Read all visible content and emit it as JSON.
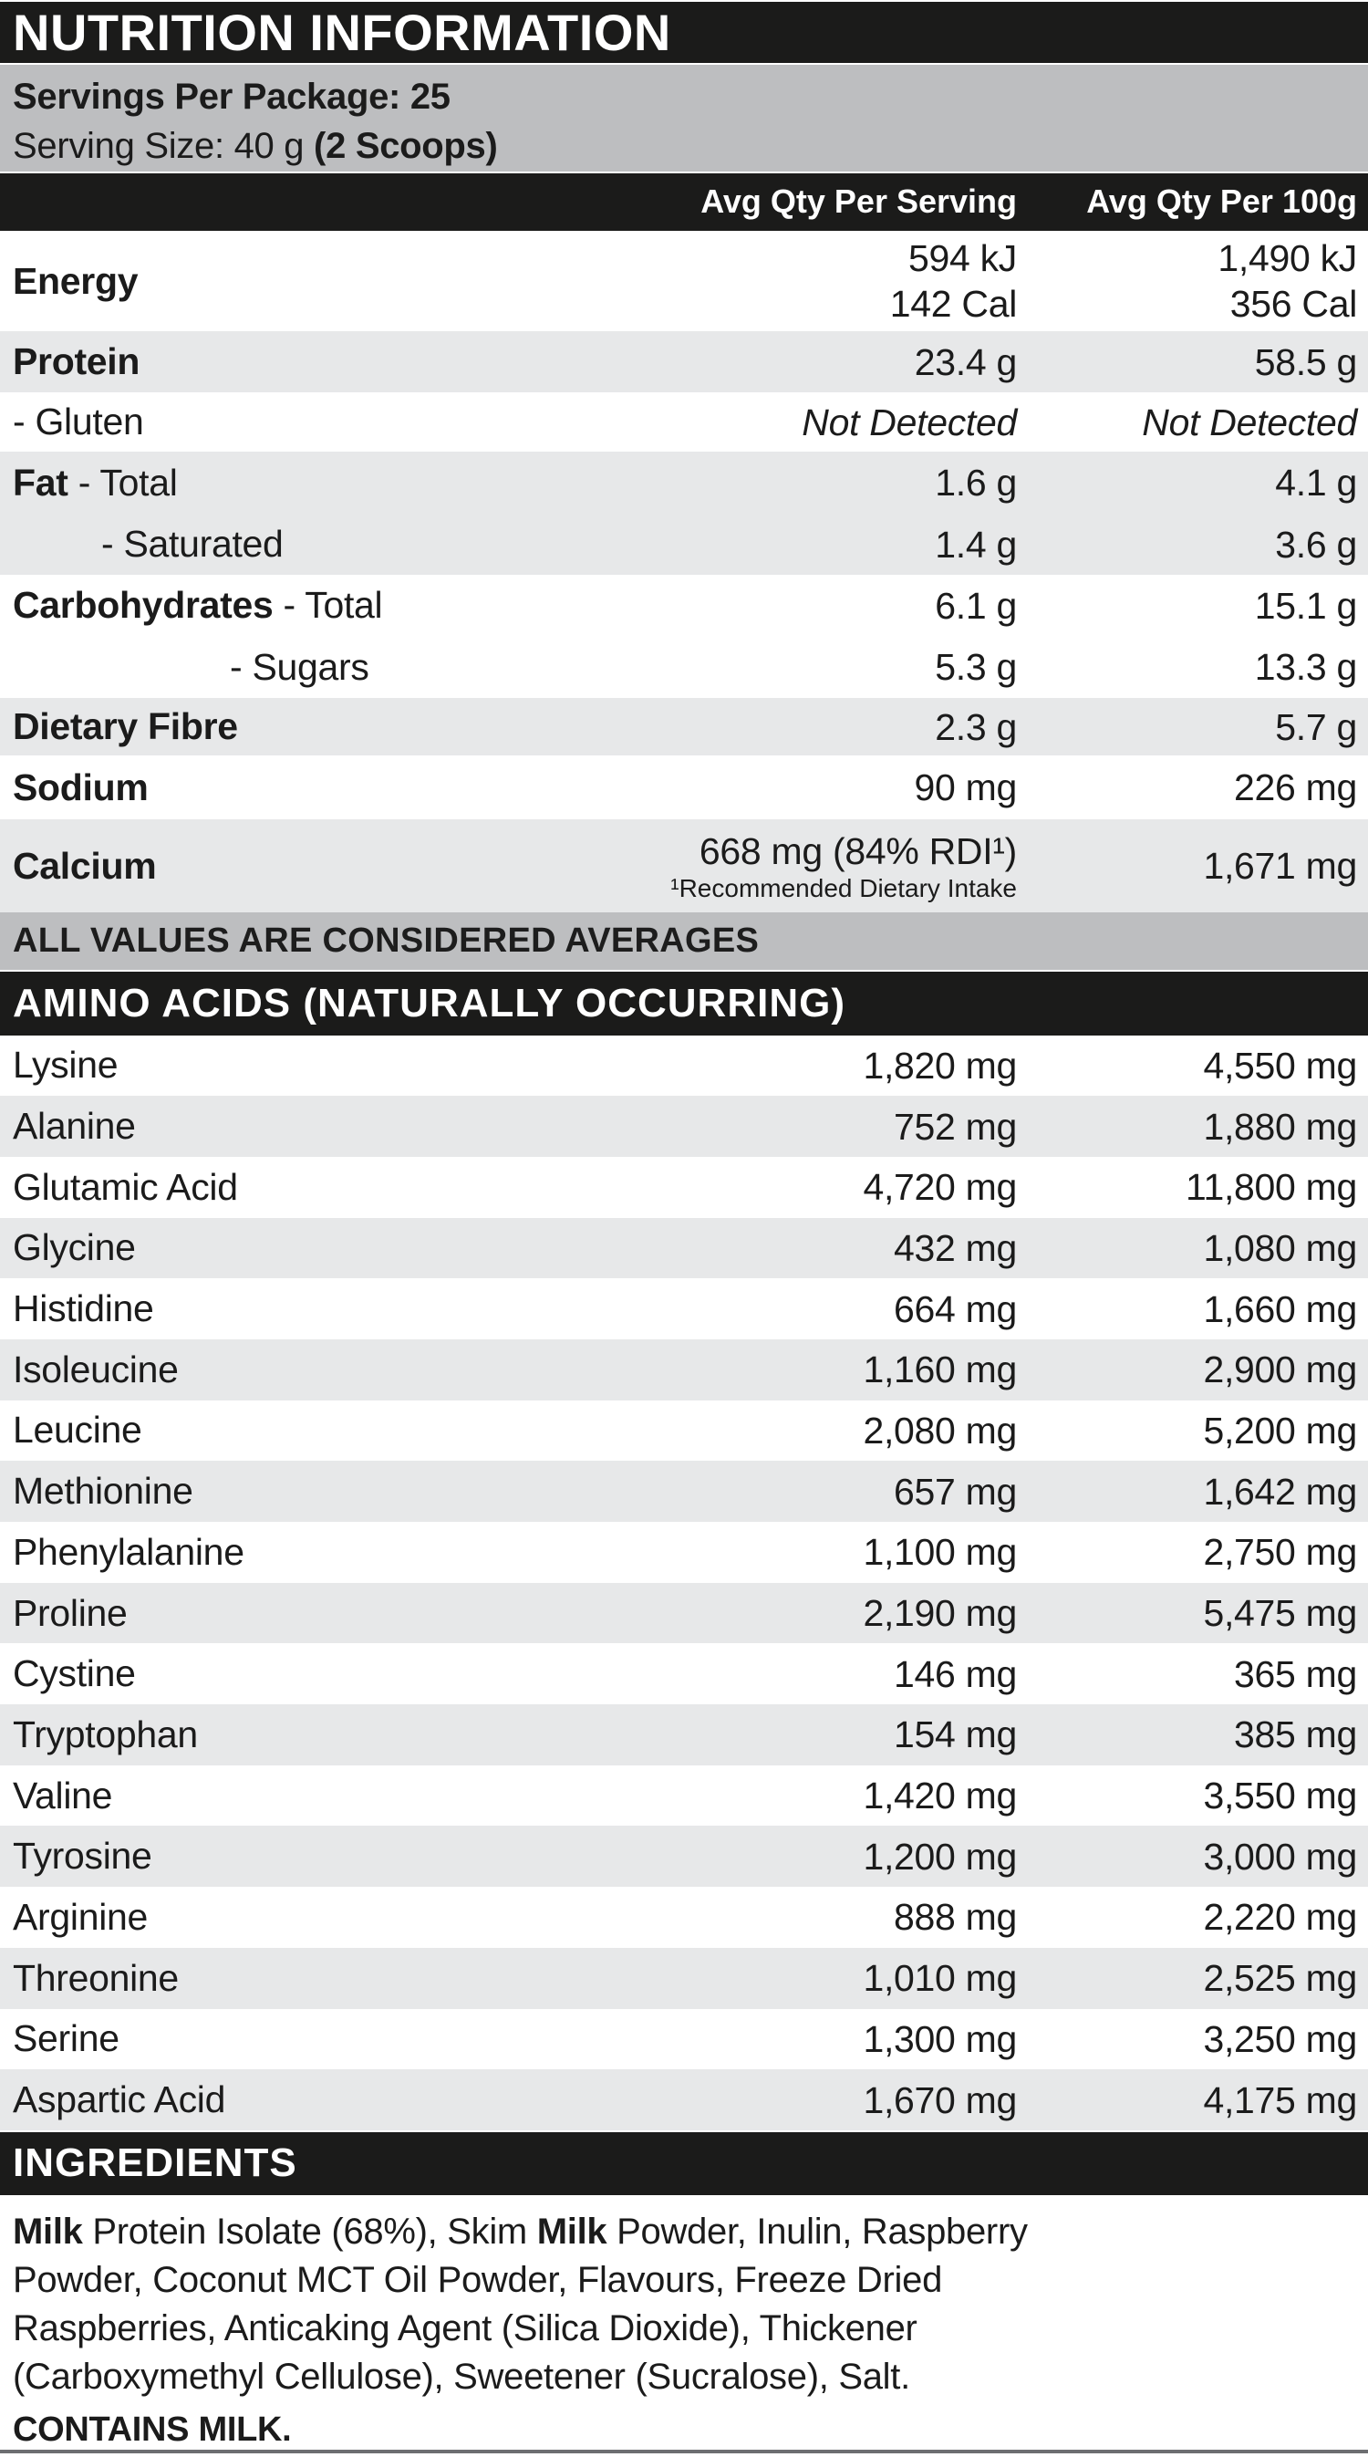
{
  "colors": {
    "band_black": "#1b1b1a",
    "silver": "#bdbec0",
    "row_gray": "#e7e8e9",
    "text": "#1b1b1b",
    "bottom_rule": "#6d6e71"
  },
  "header": {
    "title": "NUTRITION INFORMATION"
  },
  "serving_info": {
    "servings_per_package": [
      {
        "t": "Servings Per Package: 25",
        "b": true
      }
    ],
    "serving_size": [
      {
        "t": "Serving Size: 40 g ",
        "b": false
      },
      {
        "t": "(2 Scoops)",
        "b": true
      }
    ]
  },
  "column_headers": {
    "per_serving": "Avg Qty Per Serving",
    "per_100g": "Avg Qty Per 100g"
  },
  "nutrition_table": {
    "rows": [
      {
        "label": [
          {
            "t": "Energy",
            "b": true
          }
        ],
        "indent": 0,
        "shade": "gray0",
        "h": 110,
        "serving": [
          "594 kJ",
          "142 Cal"
        ],
        "per100": [
          "1,490 kJ",
          "356 Cal"
        ],
        "italic": false
      },
      {
        "label": [
          {
            "t": "Protein",
            "b": true
          }
        ],
        "indent": 0,
        "shade": "gray1",
        "h": 67,
        "serving": [
          "23.4 g"
        ],
        "per100": [
          "58.5 g"
        ],
        "italic": false
      },
      {
        "label": [
          {
            "t": "- Gluten",
            "b": false
          }
        ],
        "indent": 0,
        "shade": "gray0",
        "h": 65,
        "serving": [
          "Not Detected"
        ],
        "per100": [
          "Not Detected"
        ],
        "italic": true
      },
      {
        "label": [
          {
            "t": "Fat",
            "b": true
          },
          {
            "t": " - Total",
            "b": false
          }
        ],
        "indent": 0,
        "shade": "gray1",
        "h": 68,
        "serving": [
          "1.6 g"
        ],
        "per100": [
          "4.1 g"
        ],
        "italic": false
      },
      {
        "label": [
          {
            "t": "- Saturated",
            "b": false
          }
        ],
        "indent": 97,
        "shade": "gray1",
        "h": 67,
        "serving": [
          "1.4 g"
        ],
        "per100": [
          "3.6 g"
        ],
        "italic": false
      },
      {
        "label": [
          {
            "t": "Carbohydrates",
            "b": true
          },
          {
            "t": " - Total",
            "b": false
          }
        ],
        "indent": 0,
        "shade": "gray0",
        "h": 67,
        "serving": [
          "6.1 g"
        ],
        "per100": [
          "15.1 g"
        ],
        "italic": false
      },
      {
        "label": [
          {
            "t": "- Sugars",
            "b": false
          }
        ],
        "indent": 238,
        "shade": "gray0",
        "h": 68,
        "serving": [
          "5.3 g"
        ],
        "per100": [
          "13.3 g"
        ],
        "italic": false
      },
      {
        "label": [
          {
            "t": "Dietary Fibre",
            "b": true
          }
        ],
        "indent": 0,
        "shade": "gray1",
        "h": 63,
        "serving": [
          "2.3 g"
        ],
        "per100": [
          "5.7 g"
        ],
        "italic": false
      },
      {
        "label": [
          {
            "t": "Sodium",
            "b": true
          }
        ],
        "indent": 0,
        "shade": "gray0",
        "h": 70,
        "serving": [
          "90 mg"
        ],
        "per100": [
          "226 mg"
        ],
        "italic": false
      },
      {
        "label": [
          {
            "t": "Calcium",
            "b": true
          }
        ],
        "indent": 0,
        "shade": "gray1",
        "h": 102,
        "serving": [
          "668 mg (84% RDI¹)"
        ],
        "serving_note": "¹Recommended Dietary Intake",
        "per100": [
          "1,671 mg"
        ],
        "italic": false
      }
    ]
  },
  "averages_note": "ALL VALUES ARE CONSIDERED AVERAGES",
  "amino_section": {
    "heading": "AMINO ACIDS (NATURALLY OCCURRING)",
    "rows": [
      {
        "label": "Lysine",
        "per_serving": "1,820 mg",
        "per_100g": "4,550 mg"
      },
      {
        "label": "Alanine",
        "per_serving": "752 mg",
        "per_100g": "1,880 mg"
      },
      {
        "label": "Glutamic Acid",
        "per_serving": "4,720 mg",
        "per_100g": "11,800 mg"
      },
      {
        "label": "Glycine",
        "per_serving": "432 mg",
        "per_100g": "1,080 mg"
      },
      {
        "label": "Histidine",
        "per_serving": "664 mg",
        "per_100g": "1,660 mg"
      },
      {
        "label": "Isoleucine",
        "per_serving": "1,160 mg",
        "per_100g": "2,900 mg"
      },
      {
        "label": "Leucine",
        "per_serving": "2,080 mg",
        "per_100g": "5,200 mg"
      },
      {
        "label": "Methionine",
        "per_serving": "657 mg",
        "per_100g": "1,642 mg"
      },
      {
        "label": "Phenylalanine",
        "per_serving": "1,100 mg",
        "per_100g": "2,750 mg"
      },
      {
        "label": "Proline",
        "per_serving": "2,190 mg",
        "per_100g": "5,475 mg"
      },
      {
        "label": "Cystine",
        "per_serving": "146 mg",
        "per_100g": "365 mg"
      },
      {
        "label": "Tryptophan",
        "per_serving": "154 mg",
        "per_100g": "385 mg"
      },
      {
        "label": "Valine",
        "per_serving": "1,420 mg",
        "per_100g": "3,550 mg"
      },
      {
        "label": "Tyrosine",
        "per_serving": "1,200 mg",
        "per_100g": "3,000 mg"
      },
      {
        "label": "Arginine",
        "per_serving": "888 mg",
        "per_100g": "2,220 mg"
      },
      {
        "label": "Threonine",
        "per_serving": "1,010 mg",
        "per_100g": "2,525 mg"
      },
      {
        "label": "Serine",
        "per_serving": "1,300 mg",
        "per_100g": "3,250 mg"
      },
      {
        "label": "Aspartic Acid",
        "per_serving": "1,670 mg",
        "per_100g": "4,175 mg"
      }
    ]
  },
  "ingredients_section": {
    "heading": "INGREDIENTS",
    "lines": [
      [
        {
          "t": "Milk",
          "b": true
        },
        {
          "t": " Protein Isolate (68%), Skim ",
          "b": false
        },
        {
          "t": "Milk",
          "b": true
        },
        {
          "t": " Powder, Inulin, Raspberry",
          "b": false
        }
      ],
      [
        {
          "t": "Powder, Coconut MCT Oil Powder, Flavours, Freeze Dried",
          "b": false
        }
      ],
      [
        {
          "t": "Raspberries, Anticaking Agent (Silica Dioxide), Thickener",
          "b": false
        }
      ],
      [
        {
          "t": "(Carboxymethyl Cellulose), Sweetener (Sucralose), Salt.",
          "b": false
        }
      ]
    ],
    "contains": "CONTAINS MILK."
  }
}
